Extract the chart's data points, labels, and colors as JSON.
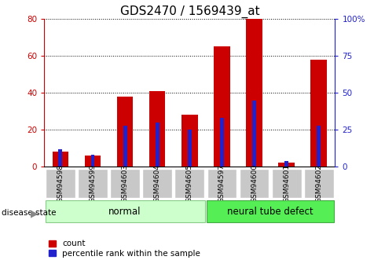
{
  "title": "GDS2470 / 1569439_at",
  "categories": [
    "GSM94598",
    "GSM94599",
    "GSM94603",
    "GSM94604",
    "GSM94605",
    "GSM94597",
    "GSM94600",
    "GSM94601",
    "GSM94602"
  ],
  "count_values": [
    8,
    6,
    38,
    41,
    28,
    65,
    80,
    2,
    58
  ],
  "percentile_values": [
    12,
    8,
    28,
    30,
    25,
    33,
    45,
    4,
    28
  ],
  "normal_group": [
    0,
    1,
    2,
    3,
    4
  ],
  "defect_group": [
    5,
    6,
    7,
    8
  ],
  "left_ylim": [
    0,
    80
  ],
  "right_ylim": [
    0,
    100
  ],
  "left_yticks": [
    0,
    20,
    40,
    60,
    80
  ],
  "right_yticks": [
    0,
    25,
    50,
    75,
    100
  ],
  "right_yticklabels": [
    "0",
    "25",
    "50",
    "75",
    "100%"
  ],
  "bar_color_red": "#cc0000",
  "bar_color_blue": "#2222cc",
  "normal_bg": "#ccffcc",
  "defect_bg": "#55ee55",
  "tick_bg": "#c8c8c8",
  "legend_count": "count",
  "legend_pct": "percentile rank within the sample",
  "disease_state_label": "disease state",
  "normal_label": "normal",
  "defect_label": "neural tube defect",
  "title_fontsize": 11,
  "tick_fontsize": 7.5
}
